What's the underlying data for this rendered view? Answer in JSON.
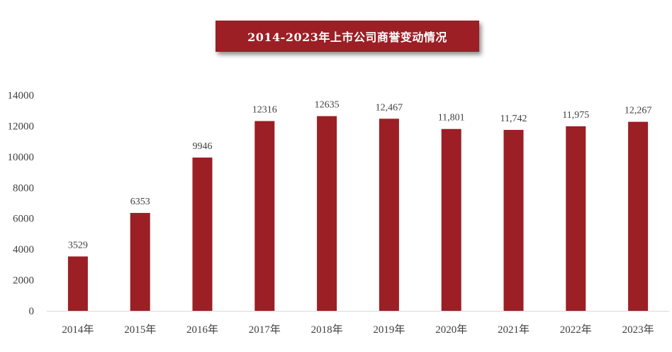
{
  "chart_data": {
    "type": "bar",
    "title": "2014-2023年上市公司商誉变动情况",
    "categories": [
      "2014年",
      "2015年",
      "2016年",
      "2017年",
      "2018年",
      "2019年",
      "2020年",
      "2021年",
      "2022年",
      "2023年"
    ],
    "values": [
      3529,
      6353,
      9946,
      12316,
      12635,
      12467,
      11801,
      11742,
      11975,
      12267
    ],
    "value_labels": [
      "3529",
      "6353",
      "9946",
      "12316",
      "12635",
      "12,467",
      "11,801",
      "11,742",
      "11,975",
      "12,267"
    ],
    "yticks": [
      "0",
      "2000",
      "4000",
      "6000",
      "8000",
      "10000",
      "12000",
      "14000"
    ],
    "ylim": [
      0,
      14000
    ],
    "xlabel": "",
    "ylabel": "",
    "grid": false,
    "legend": "none",
    "bar_color": "#9b1f24",
    "title_bg_color": "#9b1f24",
    "axis_color": "#d9d9d9",
    "label_color": "#404040"
  }
}
